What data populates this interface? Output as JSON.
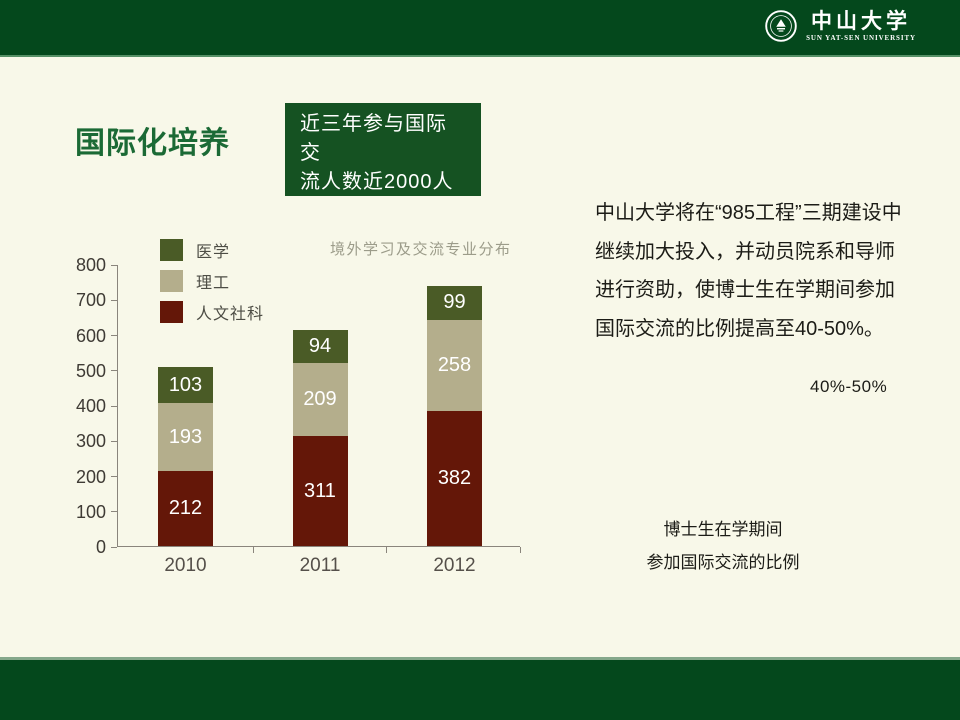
{
  "header": {
    "university_name": "中山大学",
    "university_name_en": "SUN YAT-SEN UNIVERSITY"
  },
  "slide": {
    "title": "国际化培养",
    "callout": {
      "line1": "近三年参与国际交",
      "line2": "流人数近2000人"
    },
    "paragraph": "中山大学将在“985工程”三期建设中继续加大投入，并动员院系和导师进行资助，使博士生在学期间参加国际交流的比例提高至40-50%。",
    "highlight": "40%-50%",
    "caption": {
      "line1": "博士生在学期间",
      "line2": "参加国际交流的比例"
    }
  },
  "icons": {
    "university_seal": "university-seal-icon"
  },
  "colors": {
    "bar_dark_green": "#04481C",
    "callout_green": "#155222",
    "title_green": "#1B6A35",
    "background_cream": "#F8F8E9",
    "series_medicine": "#4A5B26",
    "series_science": "#B4AE8C",
    "series_humanities": "#641708",
    "axis": "#8A857C",
    "text": "#1C1C17"
  },
  "chart_data": {
    "type": "bar",
    "stacked": true,
    "title": "境外学习及交流专业分布",
    "categories": [
      "2010",
      "2011",
      "2012"
    ],
    "series": [
      {
        "name": "人文社科",
        "color": "#641708",
        "values": [
          212,
          311,
          382
        ]
      },
      {
        "name": "理工",
        "color": "#B4AE8C",
        "values": [
          193,
          209,
          258
        ]
      },
      {
        "name": "医学",
        "color": "#4A5B26",
        "values": [
          103,
          94,
          99
        ]
      }
    ],
    "totals": [
      508,
      614,
      739
    ],
    "yticks": [
      0,
      100,
      200,
      300,
      400,
      500,
      600,
      700,
      800
    ],
    "ylim": [
      0,
      800
    ],
    "xlabel": "",
    "ylabel": "",
    "grid": false,
    "legend_position": "top-left",
    "legend_order_top_to_bottom": [
      "医学",
      "理工",
      "人文社科"
    ]
  }
}
